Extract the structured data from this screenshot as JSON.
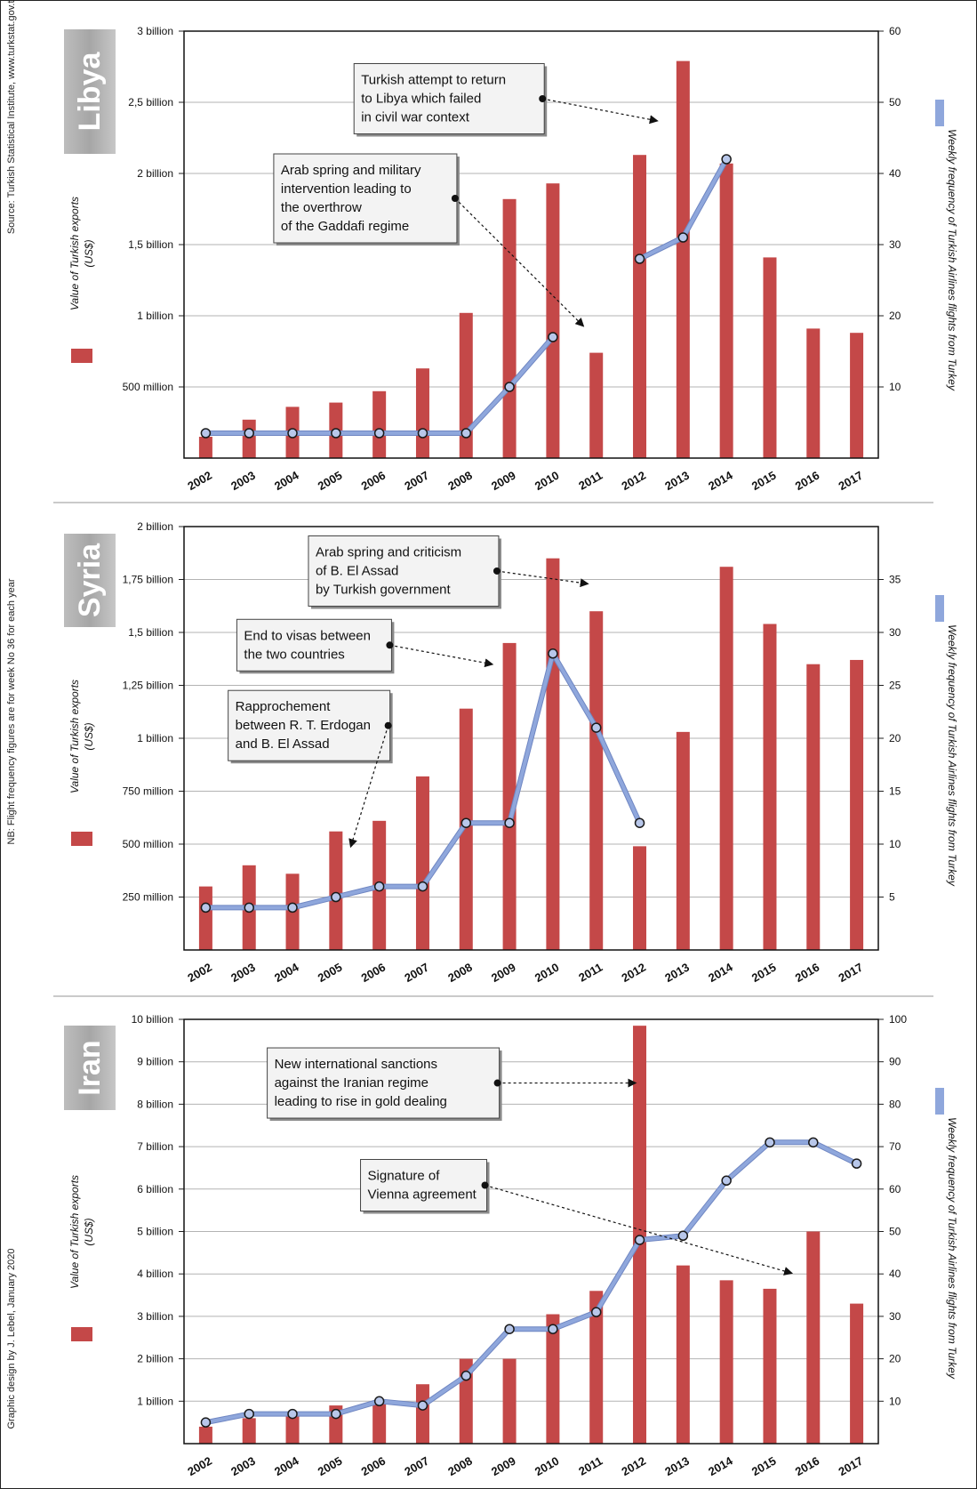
{
  "side_notes": {
    "source": "Source: Turkish Statistical Institute, www.turkstat.gov.tr",
    "nb": "NB: Flight frequency figures are for week No 36 for each year",
    "design": "Graphic design by J. Lebel, January 2020"
  },
  "colors": {
    "bar": "#c44848",
    "line": "#8fa7dc",
    "line_edge": "#6f86c2",
    "marker_fill": "#b8c7ea",
    "marker_edge": "#1a1a1a",
    "label_bg": "#d9d9d9"
  },
  "chart_data": [
    {
      "type": "bar",
      "country": "Libya",
      "left_axis_label": [
        "Value of Turkish exports",
        "(US$)"
      ],
      "right_axis_label": "Weekly frequency of Turkish Airlines flights from Turkey",
      "categories": [
        "2002",
        "2003",
        "2004",
        "2005",
        "2006",
        "2007",
        "2008",
        "2009",
        "2010",
        "2011",
        "2012",
        "2013",
        "2014",
        "2015",
        "2016",
        "2017"
      ],
      "exports": [
        150000000,
        270000000,
        360000000,
        390000000,
        470000000,
        630000000,
        1020000000,
        1820000000,
        1930000000,
        740000000,
        2130000000,
        2790000000,
        2070000000,
        1410000000,
        910000000,
        880000000
      ],
      "flights": [
        3.5,
        3.5,
        3.5,
        3.5,
        3.5,
        3.5,
        3.5,
        10,
        17,
        null,
        28,
        31,
        42,
        null,
        null,
        null
      ],
      "ylim_left": [
        0,
        3000000000
      ],
      "ylim_right": [
        0,
        60
      ],
      "left_ticks": [
        {
          "v": 500000000,
          "label": "500 million"
        },
        {
          "v": 1000000000,
          "label": "1 billion"
        },
        {
          "v": 1500000000,
          "label": "1,5 billion"
        },
        {
          "v": 2000000000,
          "label": "2 billion"
        },
        {
          "v": 2500000000,
          "label": "2,5 billion"
        },
        {
          "v": 3000000000,
          "label": "3 billion"
        }
      ],
      "right_ticks": [
        {
          "v": 10,
          "label": "10"
        },
        {
          "v": 20,
          "label": "20"
        },
        {
          "v": 30,
          "label": "30"
        },
        {
          "v": 40,
          "label": "40"
        },
        {
          "v": 50,
          "label": "50"
        },
        {
          "v": 60,
          "label": "60"
        }
      ],
      "annotations": [
        {
          "lines": [
            "Turkish attempt to return",
            "to Libya which failed",
            "in civil war context"
          ],
          "x_year": 2008.9,
          "y_left": 2525000000.0,
          "target_year": 2012.6,
          "target_y_left": 2370000000.0
        },
        {
          "lines": [
            "Arab spring and military",
            "intervention leading to",
            "the overthrow",
            "of the Gaddafi regime"
          ],
          "x_year": 2007.05,
          "y_left": 1825000000.0,
          "target_year": 2010.9,
          "target_y_left": 930000000.0
        }
      ]
    },
    {
      "type": "bar",
      "country": "Syria",
      "left_axis_label": [
        "Value of Turkish exports",
        "(US$)"
      ],
      "right_axis_label": "Weekly frequency of Turkish Airlines flights from Turkey",
      "categories": [
        "2002",
        "2003",
        "2004",
        "2005",
        "2006",
        "2007",
        "2008",
        "2009",
        "2010",
        "2011",
        "2012",
        "2013",
        "2014",
        "2015",
        "2016",
        "2017"
      ],
      "exports": [
        300000000,
        400000000,
        360000000,
        560000000,
        610000000,
        820000000,
        1140000000,
        1450000000,
        1850000000,
        1600000000,
        490000000,
        1030000000,
        1810000000,
        1540000000,
        1350000000,
        1370000000
      ],
      "flights": [
        4,
        4,
        4,
        5,
        6,
        6,
        12,
        12,
        28,
        21,
        12,
        null,
        null,
        null,
        null,
        null
      ],
      "ylim_left": [
        0,
        2000000000
      ],
      "ylim_right": [
        0,
        40
      ],
      "left_ticks": [
        {
          "v": 250000000,
          "label": "250 million"
        },
        {
          "v": 500000000,
          "label": "500 million"
        },
        {
          "v": 750000000,
          "label": "750 million"
        },
        {
          "v": 1000000000,
          "label": "1 billion"
        },
        {
          "v": 1250000000,
          "label": "1,25 billion"
        },
        {
          "v": 1500000000,
          "label": "1,5 billion"
        },
        {
          "v": 1750000000,
          "label": "1,75 billion"
        },
        {
          "v": 2000000000,
          "label": "2 billion"
        }
      ],
      "right_ticks": [
        {
          "v": 5,
          "label": "5"
        },
        {
          "v": 10,
          "label": "10"
        },
        {
          "v": 15,
          "label": "15"
        },
        {
          "v": 20,
          "label": "20"
        },
        {
          "v": 25,
          "label": "25"
        },
        {
          "v": 30,
          "label": "30"
        },
        {
          "v": 35,
          "label": "35"
        }
      ],
      "annotations": [
        {
          "lines": [
            "Arab spring and criticism",
            "of B. El Assad",
            "by Turkish government"
          ],
          "x_year": 2007.85,
          "y_left": 1790000000.0,
          "target_year": 2011,
          "target_y_left": 1730000000.0
        },
        {
          "lines": [
            "End to visas between",
            "the two countries"
          ],
          "x_year": 2006.2,
          "y_left": 1440000000.0,
          "target_year": 2008.8,
          "target_y_left": 1350000000.0
        },
        {
          "lines": [
            "Rapprochement",
            "between R. T. Erdogan",
            "and B. El Assad"
          ],
          "x_year": 2006,
          "y_left": 1060000000.0,
          "target_year": 2005.55,
          "target_y_left": 490000000.0
        }
      ]
    },
    {
      "type": "bar",
      "country": "Iran",
      "left_axis_label": [
        "Value of Turkish exports",
        "(US$)"
      ],
      "right_axis_label": "Weekly frequency of Turkish Airlines flights from Turkey",
      "categories": [
        "2002",
        "2003",
        "2004",
        "2005",
        "2006",
        "2007",
        "2008",
        "2009",
        "2010",
        "2011",
        "2012",
        "2013",
        "2014",
        "2015",
        "2016",
        "2017"
      ],
      "exports": [
        400000000,
        600000000,
        700000000,
        900000000,
        1000000000,
        1400000000,
        2000000000,
        2000000000,
        3050000000,
        3600000000,
        9850000000,
        4200000000,
        3850000000,
        3650000000,
        5000000000,
        3300000000
      ],
      "flights": [
        5,
        7,
        7,
        7,
        10,
        9,
        16,
        27,
        27,
        31,
        48,
        49,
        62,
        71,
        71,
        66
      ],
      "ylim_left": [
        0,
        10000000000
      ],
      "ylim_right": [
        0,
        100
      ],
      "left_ticks": [
        {
          "v": 1000000000,
          "label": "1 billion"
        },
        {
          "v": 2000000000,
          "label": "2 billion"
        },
        {
          "v": 3000000000,
          "label": "3 billion"
        },
        {
          "v": 4000000000,
          "label": "4 billion"
        },
        {
          "v": 5000000000,
          "label": "5 billion"
        },
        {
          "v": 6000000000,
          "label": "6 billion"
        },
        {
          "v": 7000000000,
          "label": "7 billion"
        },
        {
          "v": 8000000000,
          "label": "8 billion"
        },
        {
          "v": 9000000000,
          "label": "9 billion"
        },
        {
          "v": 10000000000,
          "label": "10 billion"
        }
      ],
      "right_ticks": [
        {
          "v": 10,
          "label": "10"
        },
        {
          "v": 20,
          "label": "20"
        },
        {
          "v": 30,
          "label": "30"
        },
        {
          "v": 40,
          "label": "40"
        },
        {
          "v": 50,
          "label": "50"
        },
        {
          "v": 60,
          "label": "60"
        },
        {
          "v": 70,
          "label": "70"
        },
        {
          "v": 80,
          "label": "80"
        },
        {
          "v": 90,
          "label": "90"
        },
        {
          "v": 100,
          "label": "100"
        }
      ],
      "annotations": [
        {
          "lines": [
            "New international sanctions",
            "against the Iranian regime",
            "leading to rise in gold dealing"
          ],
          "x_year": 2006.9,
          "y_left": 8500000000.0,
          "target_year": 2012.1,
          "target_y_left": 8500000000.0
        },
        {
          "lines": [
            "Signature of",
            "Vienna agreement"
          ],
          "x_year": 2009.05,
          "y_left": 6090000000.0,
          "target_year": 2015.7,
          "target_y_left": 4020000000.0
        }
      ]
    }
  ]
}
